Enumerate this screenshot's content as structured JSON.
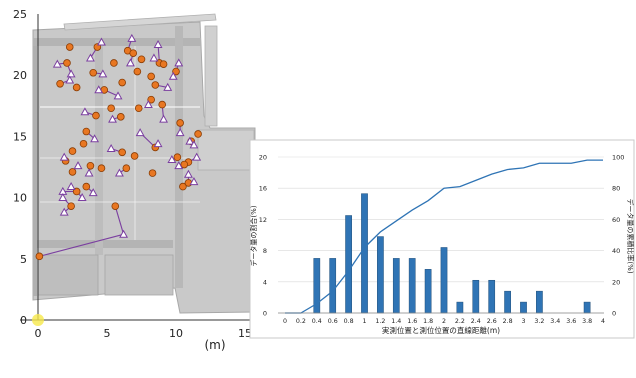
{
  "chart_data": [
    {
      "type": "scatter",
      "xlabel": "(m)",
      "xlim": [
        0,
        15
      ],
      "ylim": [
        0,
        25
      ],
      "x_ticks": [
        "0",
        "5",
        "10",
        "15"
      ],
      "y_ticks": [
        "0",
        "5",
        "10",
        "15",
        "20",
        "25"
      ],
      "grid": false,
      "series": [
        {
          "marker": "circle",
          "color": "#e87722",
          "points": [
            [
              2.3,
              22.3
            ],
            [
              4.3,
              22.3
            ],
            [
              6.5,
              22.0
            ],
            [
              5.5,
              21.0
            ],
            [
              7.5,
              21.3
            ],
            [
              8.8,
              21.0
            ],
            [
              2.1,
              21.0
            ],
            [
              6.9,
              21.8
            ],
            [
              9.1,
              20.9
            ],
            [
              7.2,
              20.3
            ],
            [
              10.0,
              20.3
            ],
            [
              4.0,
              20.2
            ],
            [
              8.2,
              19.9
            ],
            [
              1.6,
              19.3
            ],
            [
              8.5,
              19.2
            ],
            [
              4.8,
              18.8
            ],
            [
              6.1,
              19.4
            ],
            [
              2.8,
              19.0
            ],
            [
              8.2,
              18.0
            ],
            [
              9.0,
              17.6
            ],
            [
              5.3,
              17.3
            ],
            [
              7.3,
              17.3
            ],
            [
              4.2,
              16.7
            ],
            [
              6.0,
              16.6
            ],
            [
              10.3,
              16.1
            ],
            [
              3.5,
              15.4
            ],
            [
              8.5,
              14.1
            ],
            [
              11.6,
              15.2
            ],
            [
              11.1,
              14.6
            ],
            [
              3.3,
              14.4
            ],
            [
              2.5,
              13.8
            ],
            [
              6.1,
              13.7
            ],
            [
              7.0,
              13.4
            ],
            [
              10.1,
              13.3
            ],
            [
              2.0,
              13.0
            ],
            [
              10.9,
              12.9
            ],
            [
              3.8,
              12.6
            ],
            [
              4.6,
              12.4
            ],
            [
              10.6,
              12.7
            ],
            [
              2.5,
              12.1
            ],
            [
              6.4,
              12.4
            ],
            [
              8.3,
              12.0
            ],
            [
              10.5,
              10.9
            ],
            [
              10.9,
              11.2
            ],
            [
              3.5,
              10.9
            ],
            [
              2.8,
              10.5
            ],
            [
              5.6,
              9.3
            ],
            [
              2.4,
              9.3
            ],
            [
              0.1,
              5.2
            ]
          ]
        },
        {
          "marker": "triangle",
          "color": "#7b3fa0",
          "points": [
            [
              4.6,
              22.7
            ],
            [
              6.8,
              23.0
            ],
            [
              8.7,
              22.5
            ],
            [
              3.8,
              21.4
            ],
            [
              1.4,
              20.9
            ],
            [
              6.7,
              21.0
            ],
            [
              8.4,
              21.4
            ],
            [
              10.2,
              21.0
            ],
            [
              2.4,
              20.1
            ],
            [
              4.7,
              20.1
            ],
            [
              9.8,
              19.9
            ],
            [
              2.3,
              19.6
            ],
            [
              9.4,
              19.0
            ],
            [
              4.4,
              18.8
            ],
            [
              5.8,
              18.3
            ],
            [
              8.0,
              17.6
            ],
            [
              3.4,
              17.0
            ],
            [
              5.4,
              16.4
            ],
            [
              9.1,
              16.4
            ],
            [
              10.3,
              15.3
            ],
            [
              4.1,
              14.8
            ],
            [
              7.4,
              15.3
            ],
            [
              8.7,
              14.4
            ],
            [
              11.0,
              14.6
            ],
            [
              11.3,
              14.3
            ],
            [
              5.3,
              14.0
            ],
            [
              1.9,
              13.3
            ],
            [
              11.5,
              13.3
            ],
            [
              9.7,
              13.1
            ],
            [
              10.2,
              12.6
            ],
            [
              2.9,
              12.6
            ],
            [
              5.9,
              12.0
            ],
            [
              10.9,
              11.9
            ],
            [
              3.7,
              12.0
            ],
            [
              11.3,
              11.3
            ],
            [
              2.4,
              10.9
            ],
            [
              1.8,
              10.5
            ],
            [
              4.0,
              10.4
            ],
            [
              1.8,
              10.0
            ],
            [
              3.2,
              10.0
            ],
            [
              1.9,
              8.8
            ],
            [
              6.2,
              7.0
            ]
          ]
        }
      ]
    },
    {
      "type": "bar",
      "xlabel": "実測位置と測位位置の直線距離(m)",
      "ylabel": "データ量の割合(%)",
      "y2label": "データ量の累積比率(%)",
      "categories": [
        "0",
        "0.2",
        "0.4",
        "0.6",
        "0.8",
        "1",
        "1.2",
        "1.4",
        "1.6",
        "1.8",
        "2",
        "2.2",
        "2.4",
        "2.6",
        "2.8",
        "3",
        "3.2",
        "3.4",
        "3.6",
        "3.8",
        "4"
      ],
      "values": [
        0,
        0,
        7.0,
        7.0,
        12.5,
        15.3,
        9.8,
        7.0,
        7.0,
        5.6,
        8.4,
        1.4,
        4.2,
        4.2,
        2.8,
        1.4,
        2.8,
        0,
        0,
        1.4,
        0
      ],
      "ylim": [
        0,
        20
      ],
      "y_ticks": [
        "0",
        "4",
        "8",
        "12",
        "16",
        "20"
      ],
      "bar_color": "#2f74b5",
      "cumulative": {
        "axis": "right",
        "ylim": [
          0,
          100
        ],
        "y_ticks": [
          "0",
          "20",
          "40",
          "60",
          "80",
          "100"
        ],
        "color": "#2f74b5",
        "values": [
          0,
          0,
          6,
          14,
          27,
          42,
          52,
          59,
          66,
          72,
          80,
          81,
          85,
          89,
          92,
          93,
          96,
          96,
          96,
          98,
          98
        ]
      },
      "grid": "horizontal"
    }
  ]
}
